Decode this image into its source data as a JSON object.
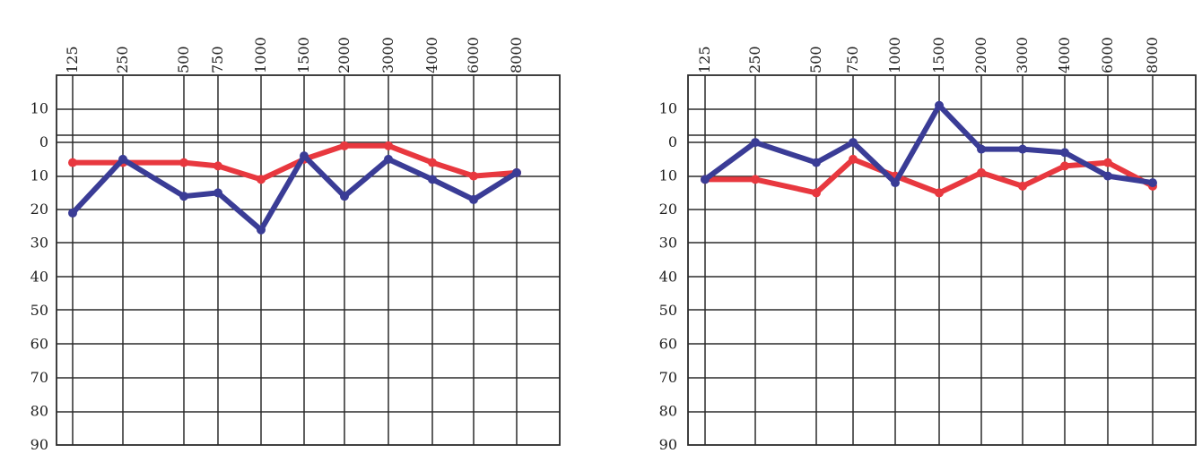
{
  "chart_data": [
    {
      "type": "line",
      "x_tick_labels": [
        "125",
        "250",
        "500",
        "750",
        "1000",
        "1500",
        "2000",
        "3000",
        "4000",
        "6000",
        "8000"
      ],
      "y_tick_labels": [
        "10",
        "0",
        "10",
        "20",
        "30",
        "40",
        "50",
        "60",
        "70",
        "80",
        "90"
      ],
      "y_tick_values": [
        -10,
        0,
        10,
        20,
        30,
        40,
        50,
        60,
        70,
        80,
        90
      ],
      "ylim": [
        -20,
        90
      ],
      "y_inverted": true,
      "grid": true,
      "series": [
        {
          "color": "#e8383f",
          "values": [
            6,
            6,
            6,
            7,
            11,
            5,
            1,
            1,
            6,
            10,
            9
          ]
        },
        {
          "color": "#3a3c96",
          "values": [
            21,
            5,
            16,
            15,
            26,
            4,
            16,
            5,
            11,
            17,
            9
          ]
        }
      ]
    },
    {
      "type": "line",
      "x_tick_labels": [
        "125",
        "250",
        "500",
        "750",
        "1000",
        "1500",
        "2000",
        "3000",
        "4000",
        "6000",
        "8000"
      ],
      "y_tick_labels": [
        "10",
        "0",
        "10",
        "20",
        "30",
        "40",
        "50",
        "60",
        "70",
        "80",
        "90"
      ],
      "y_tick_values": [
        -10,
        0,
        10,
        20,
        30,
        40,
        50,
        60,
        70,
        80,
        90
      ],
      "ylim": [
        -20,
        90
      ],
      "y_inverted": true,
      "grid": true,
      "series": [
        {
          "color": "#e8383f",
          "values": [
            11,
            11,
            15,
            5,
            10,
            15,
            9,
            13,
            7,
            6,
            13
          ]
        },
        {
          "color": "#3a3c96",
          "values": [
            11,
            0,
            6,
            0,
            12,
            -11,
            2,
            2,
            3,
            10,
            12
          ]
        }
      ]
    }
  ]
}
